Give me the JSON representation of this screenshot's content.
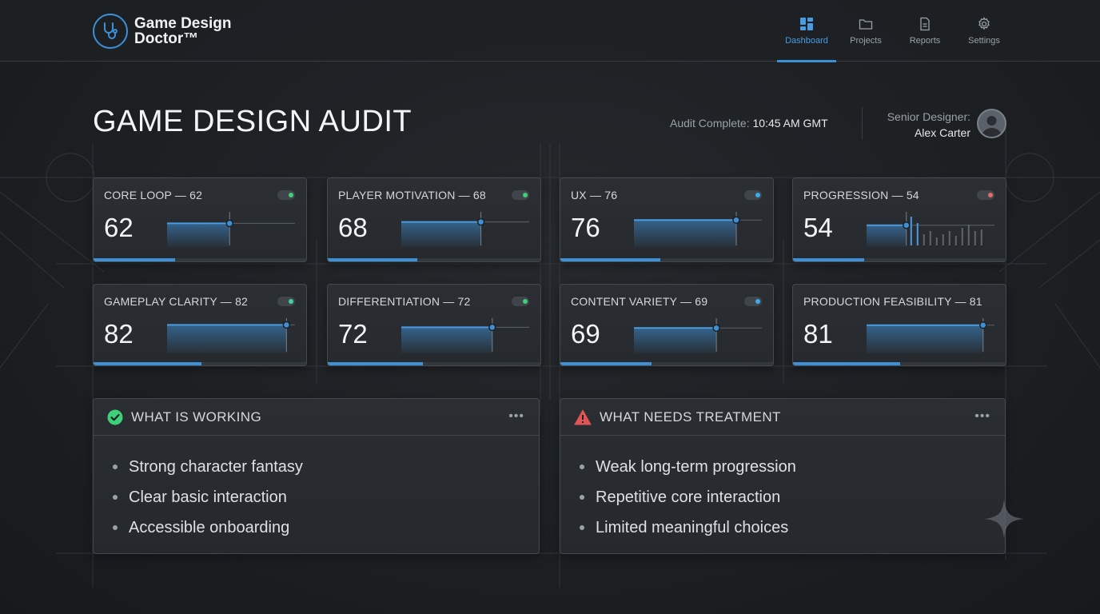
{
  "header": {
    "brand_line1": "Game Design",
    "brand_line2": "Doctor™",
    "nav": [
      {
        "label": "Dashboard",
        "icon": "dashboard-icon",
        "active": true
      },
      {
        "label": "Projects",
        "icon": "folder-icon",
        "active": false
      },
      {
        "label": "Reports",
        "icon": "document-icon",
        "active": false
      },
      {
        "label": "Settings",
        "icon": "gear-icon",
        "active": false
      }
    ]
  },
  "page": {
    "title": "GAME DESIGN AUDIT",
    "status_label": "Audit Complete:",
    "status_time": "10:45 AM GMT",
    "designer_role": "Senior Designer:",
    "designer_name": "Alex Carter"
  },
  "metrics": [
    {
      "label": "CORE LOOP — 62",
      "value": "62",
      "score": 62,
      "status_color": "#3ecf7a"
    },
    {
      "label": "PLAYER MOTIVATION — 68",
      "value": "68",
      "score": 68,
      "status_color": "#3ecf7a"
    },
    {
      "label": "UX — 76",
      "value": "76",
      "score": 76,
      "status_color": "#3da9ee"
    },
    {
      "label": "PROGRESSION — 54",
      "value": "54",
      "score": 54,
      "status_color": "#e36a6a"
    },
    {
      "label": "GAMEPLAY CLARITY — 82",
      "value": "82",
      "score": 82,
      "status_color": "#3ecfa0"
    },
    {
      "label": "DIFFERENTIATION — 72",
      "value": "72",
      "score": 72,
      "status_color": "#3ecf7a"
    },
    {
      "label": "CONTENT VARIETY — 69",
      "value": "69",
      "score": 69,
      "status_color": "#3da9ee"
    },
    {
      "label": "PRODUCTION FEASIBILITY — 81",
      "value": "81",
      "score": 81,
      "status_color": ""
    }
  ],
  "working": {
    "title": "WHAT IS WORKING",
    "icon": "check-circle-icon",
    "items": [
      "Strong character fantasy",
      "Clear basic interaction",
      "Accessible onboarding"
    ]
  },
  "treatment": {
    "title": "WHAT NEEDS TREATMENT",
    "icon": "warning-icon",
    "items": [
      "Weak long-term progression",
      "Repetitive core interaction",
      "Limited meaningful choices"
    ]
  },
  "colors": {
    "accent": "#3d8fd6",
    "ok": "#3ecf7a",
    "warn": "#e05555"
  }
}
